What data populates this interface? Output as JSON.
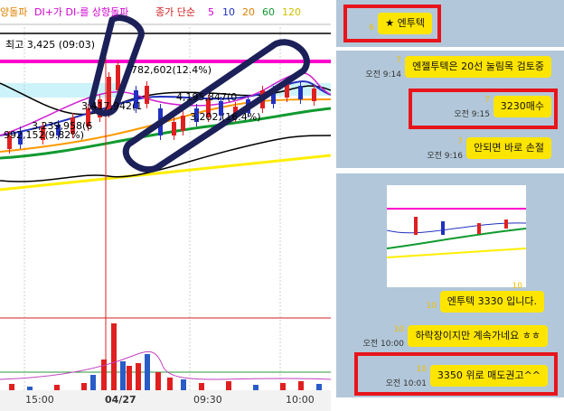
{
  "chart_panel": {
    "legend": [
      {
        "text": "양돌파",
        "color": "#e08000"
      },
      {
        "text": "DI+가 DI-를 상향돌파",
        "color": "#d000d0"
      },
      {
        "text": "종가 단순",
        "color": "#d02020"
      },
      {
        "text": "5",
        "color": "#d000d0"
      },
      {
        "text": "10",
        "color": "#2030c0"
      },
      {
        "text": "20",
        "color": "#e08000"
      },
      {
        "text": "60",
        "color": "#109a30"
      },
      {
        "text": "120",
        "color": "#d0c000"
      }
    ],
    "annotations": [
      "최고 3,425 (09:03)",
      "782,602(12.4%)",
      "4,195,847(0",
      "3,417,942(1",
      "3,239,958(6",
      "992,152(9.82%)",
      "3,202,(16.4%)"
    ],
    "time_labels": [
      "15:00",
      "04/27",
      "09:30",
      "10:00"
    ]
  },
  "chat": {
    "messages": [
      {
        "text": "★ 엔투텍",
        "unread": "6",
        "highlighted": true
      },
      {
        "text": "엔젤투텍은 20선 눌림목 검토중",
        "unread": "7",
        "time": "오전 9:14"
      },
      {
        "text": "3230매수",
        "unread": "7",
        "time": "오전 9:15",
        "highlighted": true
      },
      {
        "text": "안되면 바로 손절",
        "unread": "7",
        "time": "오전 9:16"
      },
      {
        "unread": "10"
      },
      {
        "text": "엔투텍 3330 입니다.",
        "unread": "10"
      },
      {
        "text": "하락장이지만 계속가네요 ㅎㅎ",
        "unread": "10",
        "time": "오전 10:00"
      },
      {
        "text": "3350 위로 매도권고^^",
        "unread": "10",
        "time": "오전 10:01",
        "highlighted": true
      }
    ]
  }
}
